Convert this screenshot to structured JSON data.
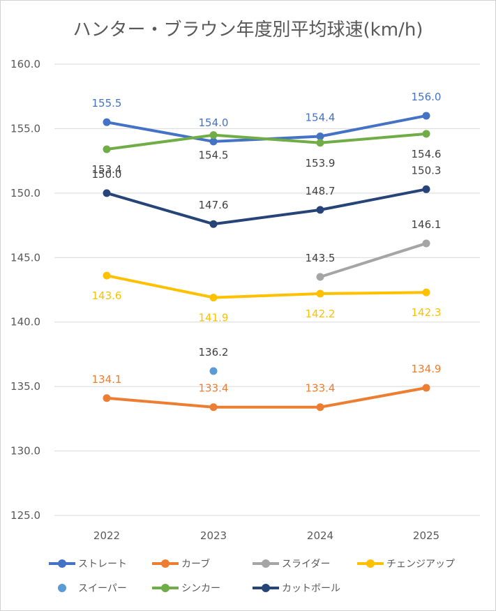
{
  "chart_data": {
    "type": "line",
    "title": "ハンター・ブラウン年度別平均球速(km/h)",
    "categories": [
      "2022",
      "2023",
      "2024",
      "2025"
    ],
    "ylim": [
      125.0,
      160.0
    ],
    "yticks": [
      "125.0",
      "130.0",
      "135.0",
      "140.0",
      "145.0",
      "150.0",
      "155.0",
      "160.0"
    ],
    "grid": true,
    "legend_position": "bottom",
    "series": [
      {
        "name": "ストレート",
        "color": "#4472C4",
        "values": [
          155.5,
          154.0,
          154.4,
          156.0
        ],
        "labels": [
          "155.5",
          "154.0",
          "154.4",
          "156.0"
        ],
        "label_pos": "above",
        "label_color": "#4472C4"
      },
      {
        "name": "カーブ",
        "color": "#ED7D31",
        "values": [
          134.1,
          133.4,
          133.4,
          134.9
        ],
        "labels": [
          "134.1",
          "133.4",
          "133.4",
          "134.9"
        ],
        "label_pos": "above",
        "label_color": "#ED7D31"
      },
      {
        "name": "スライダー",
        "color": "#A5A5A5",
        "values": [
          null,
          null,
          143.5,
          146.1
        ],
        "labels": [
          null,
          null,
          "143.5",
          "146.1"
        ],
        "label_pos": "above",
        "label_color": "#404040"
      },
      {
        "name": "チェンジアップ",
        "color": "#FFC000",
        "values": [
          143.6,
          141.9,
          142.2,
          142.3
        ],
        "labels": [
          "143.6",
          "141.9",
          "142.2",
          "142.3"
        ],
        "label_pos": "below",
        "label_color": "#FFC000"
      },
      {
        "name": "スイーパー",
        "color": "#5B9BD5",
        "values": [
          null,
          136.2,
          null,
          null
        ],
        "labels": [
          null,
          "136.2",
          null,
          null
        ],
        "label_pos": "above",
        "label_color": "#404040"
      },
      {
        "name": "シンカー",
        "color": "#70AD47",
        "values": [
          153.4,
          154.5,
          153.9,
          154.6
        ],
        "labels": [
          "153.4",
          "154.5",
          "153.9",
          "154.6"
        ],
        "label_pos": "below",
        "label_color": "#404040"
      },
      {
        "name": "カットボール",
        "color": "#264478",
        "values": [
          150.0,
          147.6,
          148.7,
          150.3
        ],
        "labels": [
          "150.0",
          "147.6",
          "148.7",
          "150.3"
        ],
        "label_pos": "above",
        "label_color": "#404040"
      }
    ]
  }
}
